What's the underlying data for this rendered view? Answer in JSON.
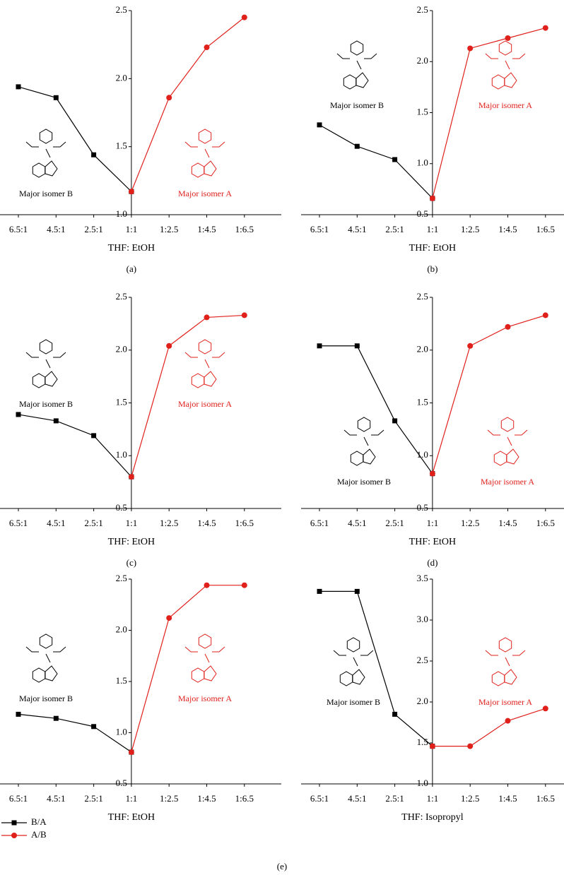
{
  "chart_data": [
    {
      "type": "line",
      "caption": "(a)",
      "x_label": "THF: EtOH",
      "annotations": [
        "Major isomer B",
        "Major isomer A"
      ],
      "categories": [
        "6.5:1",
        "4.5:1",
        "2.5:1",
        "1:1",
        "1:2.5",
        "1:4.5",
        "1:6.5"
      ],
      "series": [
        {
          "name": "B/A",
          "color": "#000000",
          "marker": "square",
          "values": [
            1.94,
            1.86,
            1.44,
            1.17,
            null,
            null,
            null
          ]
        },
        {
          "name": "A/B",
          "color": "#e0201b",
          "marker": "circle",
          "values": [
            null,
            null,
            null,
            1.17,
            1.86,
            2.23,
            2.45
          ]
        }
      ],
      "ylim": [
        1.0,
        2.5
      ],
      "yticks": [
        {
          "value": 1,
          "label": "1.0"
        },
        {
          "value": 1.5,
          "label": "1.5"
        },
        {
          "value": 2,
          "label": "2.0"
        },
        {
          "value": 2.5,
          "label": "2.5"
        }
      ]
    },
    {
      "type": "line",
      "caption": "(b)",
      "x_label": "THF: EtOH",
      "annotations": [
        "Major isomer B",
        "Major isomer A"
      ],
      "categories": [
        "6.5:1",
        "4.5:1",
        "2.5:1",
        "1:1",
        "1:2.5",
        "1:4.5",
        "1:6.5"
      ],
      "series": [
        {
          "color": "#000000",
          "marker": "square",
          "values": [
            1.38,
            1.17,
            1.04,
            0.66,
            null,
            null,
            null
          ]
        },
        {
          "color": "#e0201b",
          "marker": "circle",
          "values": [
            null,
            null,
            null,
            0.66,
            2.13,
            2.23,
            2.33
          ]
        }
      ],
      "ylim": [
        0.5,
        2.5
      ],
      "yticks": [
        {
          "value": 0.5,
          "label": "0.5"
        },
        {
          "value": 1,
          "label": "1.0"
        },
        {
          "value": 1.5,
          "label": "1.5"
        },
        {
          "value": 2,
          "label": "2.0"
        },
        {
          "value": 2.5,
          "label": "2.5"
        }
      ]
    },
    {
      "type": "line",
      "caption": "(c)",
      "x_label": "THF: EtOH",
      "annotations": [
        "Major isomer B",
        "Major isomer A"
      ],
      "categories": [
        "6.5:1",
        "4.5:1",
        "2.5:1",
        "1:1",
        "1:2.5",
        "1:4.5",
        "1:6.5"
      ],
      "series": [
        {
          "color": "#000000",
          "marker": "square",
          "values": [
            1.39,
            1.33,
            1.19,
            0.8,
            null,
            null,
            null
          ]
        },
        {
          "color": "#e0201b",
          "marker": "circle",
          "values": [
            null,
            null,
            null,
            0.8,
            2.04,
            2.31,
            2.33
          ]
        }
      ],
      "ylim": [
        0.5,
        2.5
      ],
      "yticks": [
        {
          "value": 0.5,
          "label": "0.5"
        },
        {
          "value": 1,
          "label": "1.0"
        },
        {
          "value": 1.5,
          "label": "1.5"
        },
        {
          "value": 2,
          "label": "2.0"
        },
        {
          "value": 2.5,
          "label": "2.5"
        }
      ]
    },
    {
      "type": "line",
      "caption": "(d)",
      "x_label": "THF: EtOH",
      "annotations": [
        "Major isomer B",
        "Major isomer A"
      ],
      "categories": [
        "6.5:1",
        "4.5:1",
        "2.5:1",
        "1:1",
        "1:2.5",
        "1:4.5",
        "1:6.5"
      ],
      "series": [
        {
          "color": "#000000",
          "marker": "square",
          "values": [
            2.04,
            2.04,
            1.33,
            0.83,
            null,
            null,
            null
          ]
        },
        {
          "color": "#e0201b",
          "marker": "circle",
          "values": [
            null,
            null,
            null,
            0.83,
            2.04,
            2.22,
            2.33
          ]
        }
      ],
      "ylim": [
        0.5,
        2.5
      ],
      "yticks": [
        {
          "value": 0.5,
          "label": "0.5"
        },
        {
          "value": 1,
          "label": "1.0"
        },
        {
          "value": 1.5,
          "label": "1.5"
        },
        {
          "value": 2,
          "label": "2.0"
        },
        {
          "value": 2.5,
          "label": "2.5"
        }
      ]
    },
    {
      "type": "line",
      "caption": "(e)",
      "x_label": "THF: EtOH",
      "annotations": [
        "Major isomer B",
        "Major isomer A"
      ],
      "categories": [
        "6.5:1",
        "4.5:1",
        "2.5:1",
        "1:1",
        "1:2.5",
        "1:4.5",
        "1:6.5"
      ],
      "series": [
        {
          "color": "#000000",
          "marker": "square",
          "values": [
            1.18,
            1.14,
            1.06,
            0.81,
            null,
            null,
            null
          ]
        },
        {
          "color": "#e0201b",
          "marker": "circle",
          "values": [
            null,
            null,
            null,
            0.81,
            2.12,
            2.44,
            2.44
          ]
        }
      ],
      "ylim": [
        0.5,
        2.5
      ],
      "yticks": [
        {
          "value": 0.5,
          "label": "0.5"
        },
        {
          "value": 1,
          "label": "1.0"
        },
        {
          "value": 1.5,
          "label": "1.5"
        },
        {
          "value": 2,
          "label": "2.0"
        },
        {
          "value": 2.5,
          "label": "2.5"
        }
      ]
    },
    {
      "type": "line",
      "x_label": "THF: Isopropyl",
      "annotations": [
        "Major isomer B",
        "Major isomer A"
      ],
      "categories": [
        "6.5:1",
        "4.5:1",
        "2.5:1",
        "1:1",
        "1:2.5",
        "1:4.5",
        "1:6.5"
      ],
      "series": [
        {
          "color": "#000000",
          "marker": "square",
          "values": [
            3.35,
            3.35,
            1.85,
            1.46,
            null,
            null,
            null
          ]
        },
        {
          "color": "#e0201b",
          "marker": "circle",
          "values": [
            null,
            null,
            null,
            1.46,
            1.46,
            1.77,
            1.92
          ]
        }
      ],
      "ylim": [
        1.0,
        3.5
      ],
      "yticks": [
        {
          "value": 1,
          "label": "1.0"
        },
        {
          "value": 1.5,
          "label": "1.5"
        },
        {
          "value": 2,
          "label": "2.0"
        },
        {
          "value": 2.5,
          "label": "2.5"
        },
        {
          "value": 3,
          "label": "3.0"
        },
        {
          "value": 3.5,
          "label": "3.5"
        }
      ]
    }
  ]
}
